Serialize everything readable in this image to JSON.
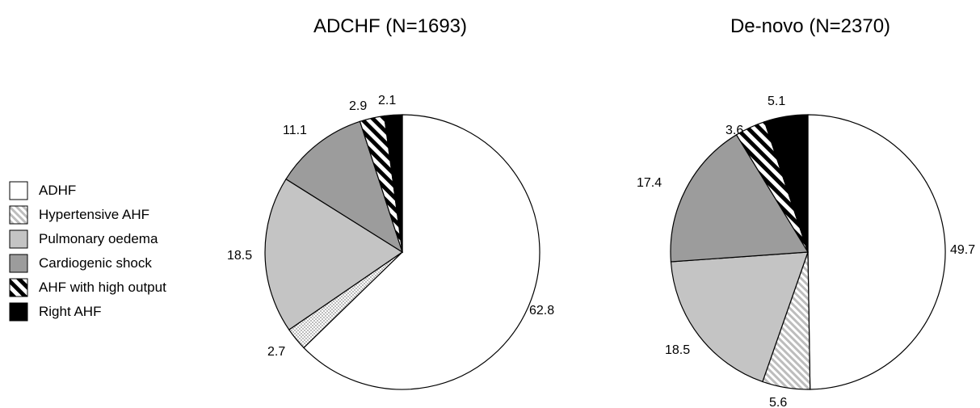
{
  "legend": {
    "entries": [
      {
        "label": "ADHF",
        "pattern": "white"
      },
      {
        "label": "Hypertensive AHF",
        "pattern": "light-checker"
      },
      {
        "label": "Pulmonary oedema",
        "pattern": "light-gray"
      },
      {
        "label": "Cardiogenic shock",
        "pattern": "mid-gray"
      },
      {
        "label": "AHF with high output",
        "pattern": "black-white-stripes"
      },
      {
        "label": "Right AHF",
        "pattern": "black"
      }
    ]
  },
  "colors": {
    "light_gray": "#c4c4c4",
    "mid_gray": "#9c9c9c",
    "checker": "#bdbdbd",
    "black": "#000000",
    "outline": "#000000"
  },
  "chart_data": [
    {
      "type": "pie",
      "title": "ADCHF (N=1693)",
      "categories": [
        "ADHF",
        "Hypertensive AHF",
        "Pulmonary oedema",
        "Cardiogenic shock",
        "AHF with high output",
        "Right AHF"
      ],
      "values": [
        62.8,
        2.7,
        18.5,
        11.1,
        2.9,
        2.1
      ],
      "labels": [
        "62.8",
        "2.7",
        "18.5",
        "11.1",
        "2.9",
        "2.1"
      ],
      "start": "12 o'clock",
      "direction": "clockwise",
      "legend_position": "left"
    },
    {
      "type": "pie",
      "title": "De-novo (N=2370)",
      "categories": [
        "ADHF",
        "Hypertensive AHF",
        "Pulmonary oedema",
        "Cardiogenic shock",
        "AHF with high output",
        "Right AHF"
      ],
      "values": [
        49.7,
        5.6,
        18.5,
        17.4,
        3.6,
        5.1
      ],
      "labels": [
        "49.7",
        "5.6",
        "18.5",
        "17.4",
        "3.6",
        "5.1"
      ],
      "start": "12 o'clock",
      "direction": "clockwise",
      "legend_position": "left"
    }
  ]
}
